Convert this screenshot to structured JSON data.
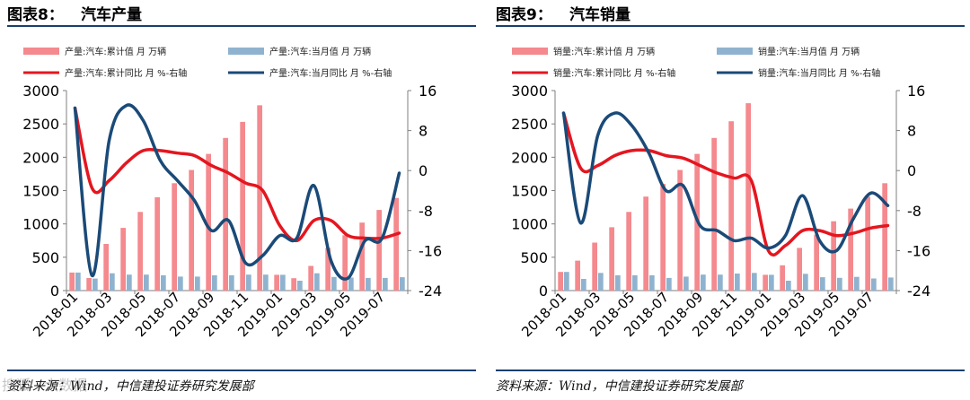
{
  "colors": {
    "cum_bar": "#f4898e",
    "mon_bar": "#8fb3cf",
    "cum_yoy": "#e4161f",
    "mon_yoy": "#1a4a78",
    "rule": "#1a3f6e"
  },
  "watermark": "搜狐 · 大数据",
  "chart_data": [
    {
      "type": "bar+line",
      "figure_number": "图表8：",
      "title": "汽车产量",
      "source": "资料来源：Wind，中信建投证券研究发展部",
      "legend": [
        "产量:汽车:累计值 月 万辆",
        "产量:汽车:当月值 月 万辆",
        "产量:汽车:累计同比 月 %-右轴",
        "产量:汽车:当月同比 月 %-右轴"
      ],
      "categories": [
        "2018-01",
        "2018-02",
        "2018-03",
        "2018-04",
        "2018-05",
        "2018-06",
        "2018-07",
        "2018-08",
        "2018-09",
        "2018-10",
        "2018-11",
        "2018-12",
        "2019-01",
        "2019-02",
        "2019-03",
        "2019-04",
        "2019-05",
        "2019-06",
        "2019-07",
        "2019-08"
      ],
      "x_tick_labels": [
        "2018-01",
        "2018-03",
        "2018-05",
        "2018-07",
        "2018-09",
        "2018-11",
        "2019-01",
        "2019-03",
        "2019-05",
        "2019-07"
      ],
      "y_left": {
        "min": 0,
        "max": 3000,
        "ticks": [
          0,
          500,
          1000,
          1500,
          2000,
          2500,
          3000
        ]
      },
      "y_right": {
        "min": -24,
        "max": 16,
        "ticks": [
          -24,
          -16,
          -8,
          0,
          8,
          16
        ]
      },
      "series": [
        {
          "name": "产量:汽车:累计值 月 万辆",
          "kind": "bar",
          "axis": "left",
          "values": [
            270,
            190,
            700,
            940,
            1180,
            1400,
            1610,
            1810,
            2050,
            2290,
            2530,
            2780,
            237,
            186,
            370,
            640,
            830,
            1020,
            1210,
            1390
          ]
        },
        {
          "name": "产量:汽车:当月值 月 万辆",
          "kind": "bar",
          "axis": "left",
          "values": [
            270,
            180,
            260,
            240,
            240,
            230,
            210,
            210,
            230,
            230,
            240,
            240,
            237,
            148,
            260,
            205,
            195,
            190,
            190,
            200
          ]
        },
        {
          "name": "产量:汽车:累计同比 月 %-右轴",
          "kind": "line",
          "axis": "right",
          "values": [
            12.5,
            -3.5,
            -2.0,
            1.5,
            4.0,
            4.0,
            3.5,
            3.0,
            1.0,
            -0.5,
            -2.5,
            -4.0,
            -11.0,
            -14.0,
            -10.0,
            -10.0,
            -13.0,
            -13.5,
            -13.5,
            -12.5
          ]
        },
        {
          "name": "产量:汽车:当月同比 月 %-右轴",
          "kind": "line",
          "axis": "right",
          "values": [
            12.5,
            -21.0,
            6.0,
            13.0,
            10.0,
            2.0,
            -2.0,
            -6.0,
            -12.0,
            -10.0,
            -18.5,
            -17.0,
            -13.0,
            -13.5,
            -3.0,
            -18.0,
            -21.5,
            -14.0,
            -13.5,
            -0.5
          ]
        }
      ]
    },
    {
      "type": "bar+line",
      "figure_number": "图表9：",
      "title": "汽车销量",
      "source": "资料来源：Wind，中信建投证券研究发展部",
      "legend": [
        "销量:汽车:累计值 月 万辆",
        "销量:汽车:当月值 月 万辆",
        "销量:汽车:累计同比 月 %-右轴",
        "销量:汽车:当月同比 月 %-右轴"
      ],
      "categories": [
        "2018-01",
        "2018-02",
        "2018-03",
        "2018-04",
        "2018-05",
        "2018-06",
        "2018-07",
        "2018-08",
        "2018-09",
        "2018-10",
        "2018-11",
        "2018-12",
        "2019-01",
        "2019-02",
        "2019-03",
        "2019-04",
        "2019-05",
        "2019-06",
        "2019-07",
        "2019-08"
      ],
      "x_tick_labels": [
        "2018-01",
        "2018-03",
        "2018-05",
        "2018-07",
        "2018-09",
        "2018-11",
        "2019-01",
        "2019-03",
        "2019-05",
        "2019-07"
      ],
      "y_left": {
        "min": 0,
        "max": 3000,
        "ticks": [
          0,
          500,
          1000,
          1500,
          2000,
          2500,
          3000
        ]
      },
      "y_right": {
        "min": -24,
        "max": 16,
        "ticks": [
          -24,
          -16,
          -8,
          0,
          8,
          16
        ]
      },
      "series": [
        {
          "name": "销量:汽车:累计值 月 万辆",
          "kind": "bar",
          "axis": "left",
          "values": [
            280,
            450,
            720,
            950,
            1180,
            1410,
            1600,
            1810,
            2050,
            2290,
            2540,
            2810,
            237,
            380,
            640,
            840,
            1040,
            1230,
            1410,
            1610
          ]
        },
        {
          "name": "销量:汽车:当月值 月 万辆",
          "kind": "bar",
          "axis": "left",
          "values": [
            280,
            175,
            265,
            230,
            230,
            230,
            190,
            210,
            240,
            240,
            255,
            265,
            237,
            148,
            252,
            200,
            191,
            206,
            181,
            196
          ]
        },
        {
          "name": "销量:汽车:累计同比 月 %-右轴",
          "kind": "line",
          "axis": "right",
          "values": [
            11.5,
            0.5,
            1.0,
            3.0,
            4.0,
            4.0,
            3.0,
            2.5,
            1.0,
            -0.5,
            -1.5,
            -2.0,
            -16.0,
            -15.0,
            -12.0,
            -12.0,
            -13.0,
            -12.5,
            -11.5,
            -11.0
          ]
        },
        {
          "name": "销量:汽车:当月同比 月 %-右轴",
          "kind": "line",
          "axis": "right",
          "values": [
            11.5,
            -10.5,
            7.0,
            11.5,
            9.0,
            3.5,
            -4.0,
            -3.0,
            -11.0,
            -12.0,
            -14.0,
            -13.5,
            -15.5,
            -13.0,
            -5.0,
            -14.0,
            -16.0,
            -9.5,
            -4.5,
            -7.0
          ]
        }
      ]
    }
  ]
}
